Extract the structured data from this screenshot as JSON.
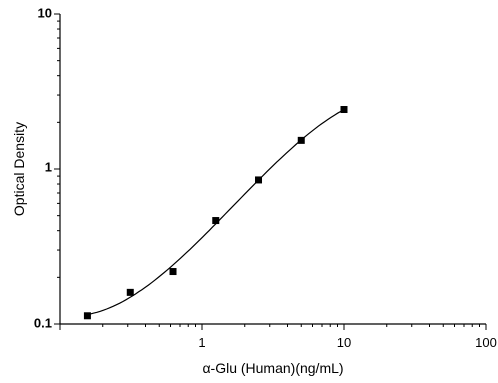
{
  "chart_data": {
    "type": "scatter",
    "xlabel": "α-Glu (Human)(ng/mL)",
    "ylabel": "Optical Density",
    "x_scale": "log",
    "y_scale": "log",
    "xlim": [
      0.1,
      100
    ],
    "ylim": [
      0.1,
      10
    ],
    "x_ticks": [
      "1",
      "10",
      "100"
    ],
    "y_ticks": [
      "0.1",
      "1",
      "10"
    ],
    "grid": false,
    "legend": "none",
    "series": [
      {
        "x": [
          0.156,
          0.3125,
          0.625,
          1.25,
          2.5,
          5,
          10
        ],
        "y": [
          0.113,
          0.16,
          0.218,
          0.465,
          0.85,
          1.53,
          2.42
        ],
        "marker": "square",
        "color": "#000000",
        "fit_curve": true
      }
    ]
  }
}
